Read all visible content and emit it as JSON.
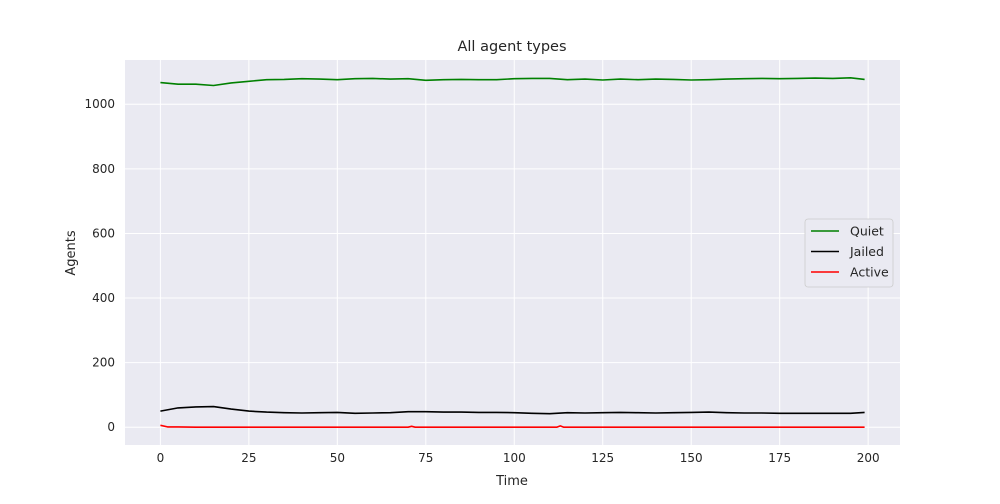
{
  "chart_data": {
    "type": "line",
    "title": "All agent types",
    "xlabel": "Time",
    "ylabel": "Agents",
    "xlim": [
      -10,
      209
    ],
    "ylim": [
      -55,
      1137
    ],
    "xticks": [
      0,
      25,
      50,
      75,
      100,
      125,
      150,
      175,
      200
    ],
    "yticks": [
      0,
      200,
      400,
      600,
      800,
      1000
    ],
    "grid": true,
    "legend_position": "center-right",
    "series": [
      {
        "name": "Quiet",
        "color": "#008000",
        "x": [
          0,
          5,
          10,
          15,
          20,
          25,
          30,
          35,
          40,
          45,
          50,
          55,
          60,
          65,
          70,
          75,
          80,
          85,
          90,
          95,
          100,
          105,
          110,
          115,
          120,
          125,
          130,
          135,
          140,
          145,
          150,
          155,
          160,
          165,
          170,
          175,
          180,
          185,
          190,
          195,
          199
        ],
        "values": [
          1067,
          1062,
          1062,
          1058,
          1066,
          1071,
          1076,
          1077,
          1079,
          1078,
          1076,
          1079,
          1080,
          1078,
          1079,
          1074,
          1076,
          1077,
          1076,
          1076,
          1079,
          1080,
          1080,
          1076,
          1078,
          1075,
          1078,
          1076,
          1078,
          1077,
          1075,
          1076,
          1078,
          1079,
          1080,
          1079,
          1080,
          1081,
          1080,
          1082,
          1077
        ]
      },
      {
        "name": "Jailed",
        "color": "#000000",
        "x": [
          0,
          5,
          10,
          15,
          20,
          25,
          30,
          35,
          40,
          45,
          50,
          55,
          60,
          65,
          70,
          75,
          80,
          85,
          90,
          95,
          100,
          105,
          110,
          115,
          120,
          125,
          130,
          135,
          140,
          145,
          150,
          155,
          160,
          165,
          170,
          175,
          180,
          185,
          190,
          195,
          199
        ],
        "values": [
          50,
          60,
          63,
          64,
          56,
          50,
          47,
          45,
          44,
          45,
          46,
          43,
          44,
          45,
          48,
          48,
          47,
          47,
          46,
          46,
          45,
          43,
          42,
          45,
          44,
          45,
          46,
          45,
          44,
          45,
          46,
          47,
          45,
          44,
          44,
          43,
          43,
          43,
          43,
          43,
          46
        ]
      },
      {
        "name": "Active",
        "color": "#ff0000",
        "x": [
          0,
          2,
          5,
          10,
          20,
          40,
          60,
          70,
          71,
          72,
          80,
          100,
          112,
          113,
          114,
          150,
          199
        ],
        "values": [
          6,
          1,
          1,
          0,
          0,
          0,
          0,
          0,
          3,
          0,
          0,
          0,
          0,
          4,
          0,
          0,
          0
        ]
      }
    ]
  }
}
